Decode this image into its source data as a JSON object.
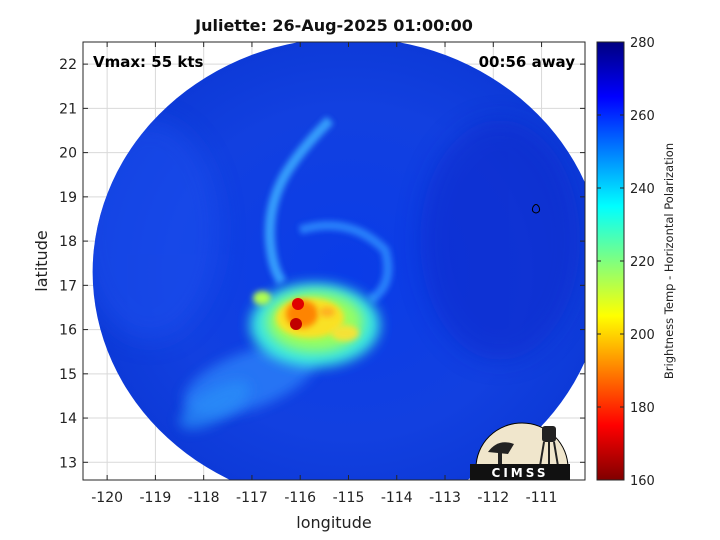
{
  "chart_data": {
    "type": "heatmap",
    "title": "Juliette: 26-Aug-2025 01:00:00",
    "annotations": {
      "left": "Vmax: 55 kts",
      "right": "00:56 away"
    },
    "xlabel": "longitude",
    "ylabel": "latitude",
    "xlim": [
      -120.5,
      -110.1
    ],
    "ylim": [
      12.6,
      22.5
    ],
    "xticks": [
      -120,
      -119,
      -118,
      -117,
      -116,
      -115,
      -114,
      -113,
      -112,
      -111
    ],
    "xtick_labels": [
      "-120",
      "-119",
      "-118",
      "-117",
      "-116",
      "-115",
      "-114",
      "-113",
      "-112",
      "-111"
    ],
    "yticks": [
      13,
      14,
      15,
      16,
      17,
      18,
      19,
      20,
      21,
      22
    ],
    "ytick_labels": [
      "13",
      "14",
      "15",
      "16",
      "17",
      "18",
      "19",
      "20",
      "21",
      "22"
    ],
    "grid": true,
    "colorbar": {
      "label": "Brightness Temp - Horizontal Polarization",
      "range": [
        160,
        280
      ],
      "ticks": [
        160,
        180,
        200,
        220,
        240,
        260,
        280
      ],
      "tick_labels": [
        "160",
        "180",
        "200",
        "220",
        "240",
        "260",
        "280"
      ],
      "colormap": "jet"
    },
    "storm_center": {
      "lon": -115.9,
      "lat": 16.2
    },
    "swath": {
      "center_lon": -115.0,
      "center_lat": 17.3,
      "radius_lon": 5.3,
      "radius_lat": 5.3
    },
    "features": [
      {
        "name": "inner core",
        "lon": -115.6,
        "lat": 16.1,
        "min_temp": 170
      },
      {
        "name": "core hot spot",
        "lon": -116.0,
        "lat": 16.55,
        "min_temp": 170
      },
      {
        "name": "western band",
        "lon": -116.8,
        "lat": 16.7,
        "min_temp": 210
      },
      {
        "name": "southern band",
        "lon": -116.4,
        "lat": 15.3,
        "min_temp": 225
      },
      {
        "name": "outer spiral band",
        "lon": -116.5,
        "lat": 18.8,
        "min_temp": 235
      }
    ],
    "background_temp": 265
  },
  "logo": {
    "text": "CIMSS"
  }
}
